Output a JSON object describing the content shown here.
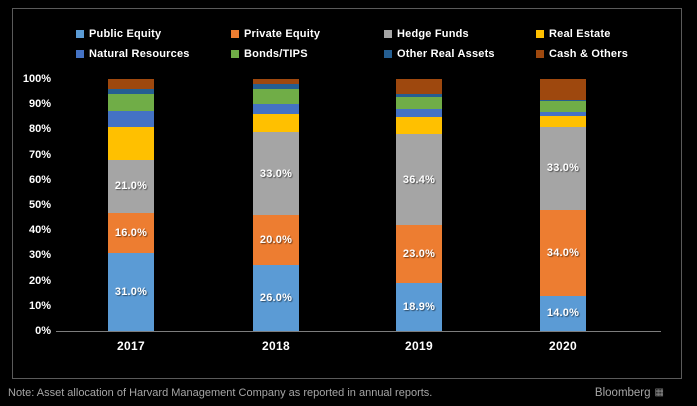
{
  "chart_data": {
    "type": "bar",
    "stacked": true,
    "stacked_total": 100,
    "title": "",
    "xlabel": "",
    "ylabel": "",
    "ylim": [
      0,
      100
    ],
    "grid": false,
    "legend_position": "top",
    "categories": [
      "2017",
      "2018",
      "2019",
      "2020"
    ],
    "yticks": [
      "0%",
      "10%",
      "20%",
      "30%",
      "40%",
      "50%",
      "60%",
      "70%",
      "80%",
      "90%",
      "100%"
    ],
    "series": [
      {
        "name": "Public Equity",
        "color": "#5B9BD5",
        "labeled": true,
        "values": [
          31.0,
          26.0,
          18.9,
          14.0
        ]
      },
      {
        "name": "Private Equity",
        "color": "#ED7D31",
        "labeled": true,
        "values": [
          16.0,
          20.0,
          23.0,
          34.0
        ]
      },
      {
        "name": "Hedge Funds",
        "color": "#A5A5A5",
        "labeled": true,
        "values": [
          21.0,
          33.0,
          36.4,
          33.0
        ]
      },
      {
        "name": "Real Estate",
        "color": "#FFC000",
        "labeled": false,
        "values": [
          13.0,
          7.0,
          6.5,
          4.2
        ]
      },
      {
        "name": "Natural Resources",
        "color": "#4472C4",
        "labeled": false,
        "values": [
          6.5,
          4.0,
          3.2,
          1.6
        ]
      },
      {
        "name": "Bonds/TIPS",
        "color": "#70AD47",
        "labeled": false,
        "values": [
          6.5,
          6.0,
          4.8,
          4.3
        ]
      },
      {
        "name": "Other Real Assets",
        "color": "#255E91",
        "labeled": false,
        "values": [
          2.0,
          2.0,
          1.3,
          0.4
        ]
      },
      {
        "name": "Cash & Others",
        "color": "#9E480E",
        "labeled": false,
        "values": [
          4.0,
          2.0,
          5.9,
          8.5
        ]
      }
    ],
    "data_labels_format": "0.0%"
  },
  "footer": {
    "note": "Note: Asset allocation of Harvard Management Company as reported in annual reports.",
    "brand": "Bloomberg"
  },
  "colors": {
    "background": "#000000",
    "box_border": "#5a5a5a",
    "axis_line": "#7d7d7d",
    "tick_text": "#ffffff",
    "footer_text": "#a6a6a6"
  }
}
